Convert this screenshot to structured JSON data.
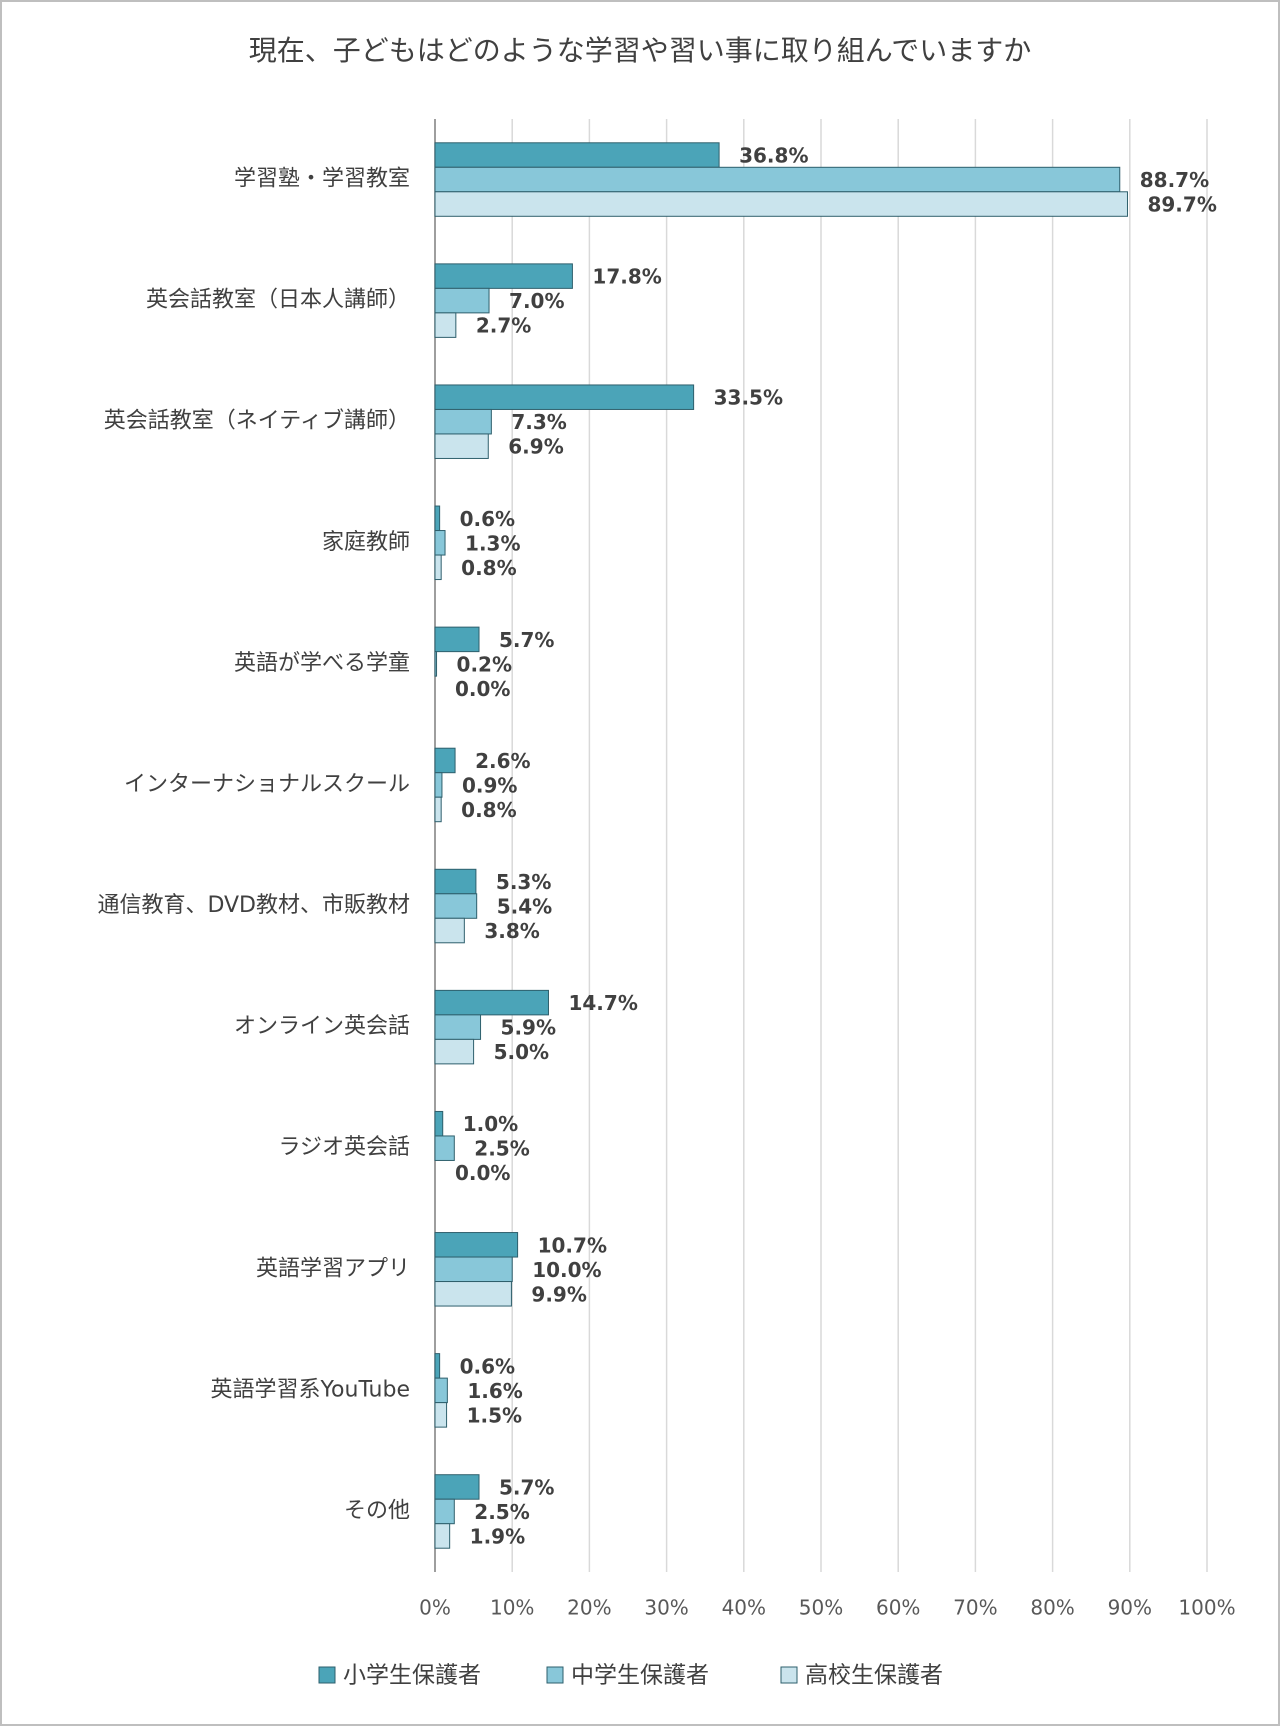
{
  "chart_data": {
    "type": "hbar",
    "title": "現在、子どもはどのような学習や習い事に取り組んでいますか",
    "categories": [
      "学習塾・学習教室",
      "英会話教室（日本人講師）",
      "英会話教室（ネイティブ講師）",
      "家庭教師",
      "英語が学べる学童",
      "インターナショナルスクール",
      "通信教育、DVD教材、市販教材",
      "オンライン英会話",
      "ラジオ英会話",
      "英語学習アプリ",
      "英語学習系YouTube",
      "その他"
    ],
    "series": [
      {
        "name": "小学生保護者",
        "color": "#4ba4b8",
        "values": [
          36.8,
          17.8,
          33.5,
          0.6,
          5.7,
          2.6,
          5.3,
          14.7,
          1.0,
          10.7,
          0.6,
          5.7
        ],
        "value_labels": [
          "36.8%",
          "17.8%",
          "33.5%",
          "0.6%",
          "5.7%",
          "2.6%",
          "5.3%",
          "14.7%",
          "1.0%",
          "10.7%",
          "0.6%",
          "5.7%"
        ]
      },
      {
        "name": "中学生保護者",
        "color": "#88c7d9",
        "values": [
          88.7,
          7.0,
          7.3,
          1.3,
          0.2,
          0.9,
          5.4,
          5.9,
          2.5,
          10.0,
          1.6,
          2.5
        ],
        "value_labels": [
          "88.7%",
          "7.0%",
          "7.3%",
          "1.3%",
          "0.2%",
          "0.9%",
          "5.4%",
          "5.9%",
          "2.5%",
          "10.0%",
          "1.6%",
          "2.5%"
        ]
      },
      {
        "name": "高校生保護者",
        "color": "#cae4ed",
        "values": [
          89.7,
          2.7,
          6.9,
          0.8,
          0.0,
          0.8,
          3.8,
          5.0,
          0.0,
          9.9,
          1.5,
          1.9
        ],
        "value_labels": [
          "89.7%",
          "2.7%",
          "6.9%",
          "0.8%",
          "0.0%",
          "0.8%",
          "3.8%",
          "5.0%",
          "0.0%",
          "9.9%",
          "1.5%",
          "1.9%"
        ]
      }
    ],
    "xlim": [
      0,
      100
    ],
    "xticks": [
      {
        "value": 0,
        "label": "0%"
      },
      {
        "value": 10,
        "label": "10%"
      },
      {
        "value": 20,
        "label": "20%"
      },
      {
        "value": 30,
        "label": "30%"
      },
      {
        "value": 40,
        "label": "40%"
      },
      {
        "value": 50,
        "label": "50%"
      },
      {
        "value": 60,
        "label": "60%"
      },
      {
        "value": 70,
        "label": "70%"
      },
      {
        "value": 80,
        "label": "80%"
      },
      {
        "value": 90,
        "label": "90%"
      },
      {
        "value": 100,
        "label": "100%"
      }
    ],
    "grid": true,
    "legend": "bottom"
  }
}
